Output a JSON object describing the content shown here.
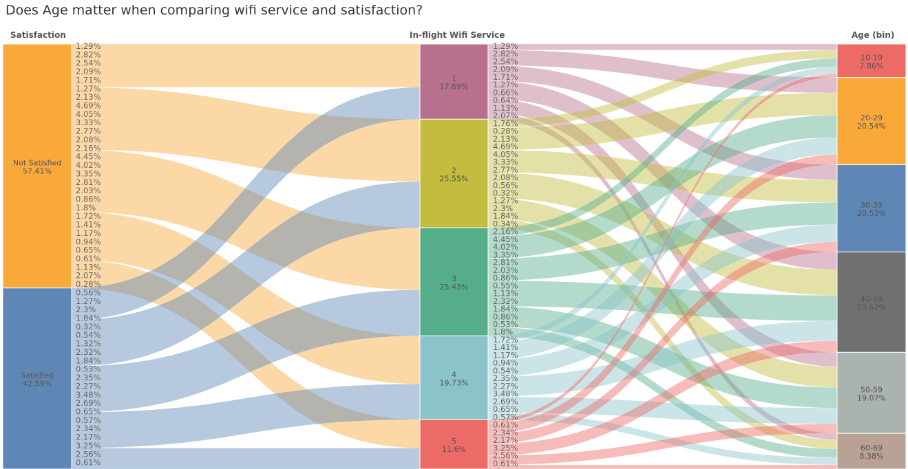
{
  "title": "Does Age matter when comparing wifi service and satisfaction?",
  "columns": {
    "satisfaction": "Satisfaction",
    "wifi": "In-flight Wifi Service",
    "age": "Age (bin)"
  },
  "chart_data": {
    "type": "sankey",
    "title": "Does Age matter when comparing wifi service and satisfaction?",
    "columns": [
      "Satisfaction",
      "In-flight Wifi Service",
      "Age (bin)"
    ],
    "satisfaction_nodes": [
      {
        "label": "Not Satisfied",
        "pct": "57.41%",
        "value": 57.41,
        "color": "#F9A93A"
      },
      {
        "label": "Satisfied",
        "pct": "42.59%",
        "value": 42.59,
        "color": "#5E87B5"
      }
    ],
    "wifi_nodes": [
      {
        "label": "1",
        "pct": "17.69%",
        "value": 17.69,
        "color": "#B8708F"
      },
      {
        "label": "2",
        "pct": "25.55%",
        "value": 25.55,
        "color": "#C3BC3E"
      },
      {
        "label": "3",
        "pct": "25.43%",
        "value": 25.43,
        "color": "#56AD89"
      },
      {
        "label": "4",
        "pct": "19.73%",
        "value": 19.73,
        "color": "#8AC3CA"
      },
      {
        "label": "5",
        "pct": "11.6%",
        "value": 11.6,
        "color": "#EC6B67"
      }
    ],
    "age_nodes": [
      {
        "label": "10-19",
        "pct": "7.86%",
        "value": 7.86,
        "color": "#EC6B67"
      },
      {
        "label": "20-29",
        "pct": "20.54%",
        "value": 20.54,
        "color": "#F9A93A"
      },
      {
        "label": "30-39",
        "pct": "20.53%",
        "value": 20.53,
        "color": "#5E87B5"
      },
      {
        "label": "40-49",
        "pct": "23.62%",
        "value": 23.62,
        "color": "#707070"
      },
      {
        "label": "50-59",
        "pct": "19.07%",
        "value": 19.07,
        "color": "#AAB3AE"
      },
      {
        "label": "60-69",
        "pct": "8.38%",
        "value": 8.38,
        "color": "#B9A294"
      }
    ],
    "flow_labels_left": [
      "1.29%",
      "2.82%",
      "2.54%",
      "2.09%",
      "1.71%",
      "1.27%",
      "2.13%",
      "4.69%",
      "4.05%",
      "3.33%",
      "2.77%",
      "2.08%",
      "2.16%",
      "4.45%",
      "4.02%",
      "3.35%",
      "2.81%",
      "2.03%",
      "0.86%",
      "1.8%",
      "1.72%",
      "1.41%",
      "1.17%",
      "0.94%",
      "0.65%",
      "0.61%",
      "1.13%",
      "2.07%",
      "0.28%",
      "0.56%",
      "1.27%",
      "2.3%",
      "1.84%",
      "0.32%",
      "0.54%",
      "1.32%",
      "2.32%",
      "1.84%",
      "0.53%",
      "2.35%",
      "2.27%",
      "3.48%",
      "2.69%",
      "0.65%",
      "0.57%",
      "2.34%",
      "2.17%",
      "3.25%",
      "2.56%",
      "0.61%"
    ],
    "flow_labels_right": [
      "1.29%",
      "2.82%",
      "2.54%",
      "2.09%",
      "1.71%",
      "1.27%",
      "0.66%",
      "0.64%",
      "1.13%",
      "2.07%",
      "1.76%",
      "0.28%",
      "2.13%",
      "4.69%",
      "4.05%",
      "3.33%",
      "2.77%",
      "2.08%",
      "0.56%",
      "0.32%",
      "1.27%",
      "2.3%",
      "1.84%",
      "0.34%",
      "2.16%",
      "4.45%",
      "4.02%",
      "3.35%",
      "2.81%",
      "2.03%",
      "0.86%",
      "0.55%",
      "1.13%",
      "2.32%",
      "1.84%",
      "0.86%",
      "0.53%",
      "1.8%",
      "1.72%",
      "1.41%",
      "1.17%",
      "0.94%",
      "0.54%",
      "2.35%",
      "2.27%",
      "3.48%",
      "2.69%",
      "0.65%",
      "0.57%",
      "0.61%",
      "2.34%",
      "2.17%",
      "3.25%",
      "2.56%",
      "0.61%"
    ]
  }
}
